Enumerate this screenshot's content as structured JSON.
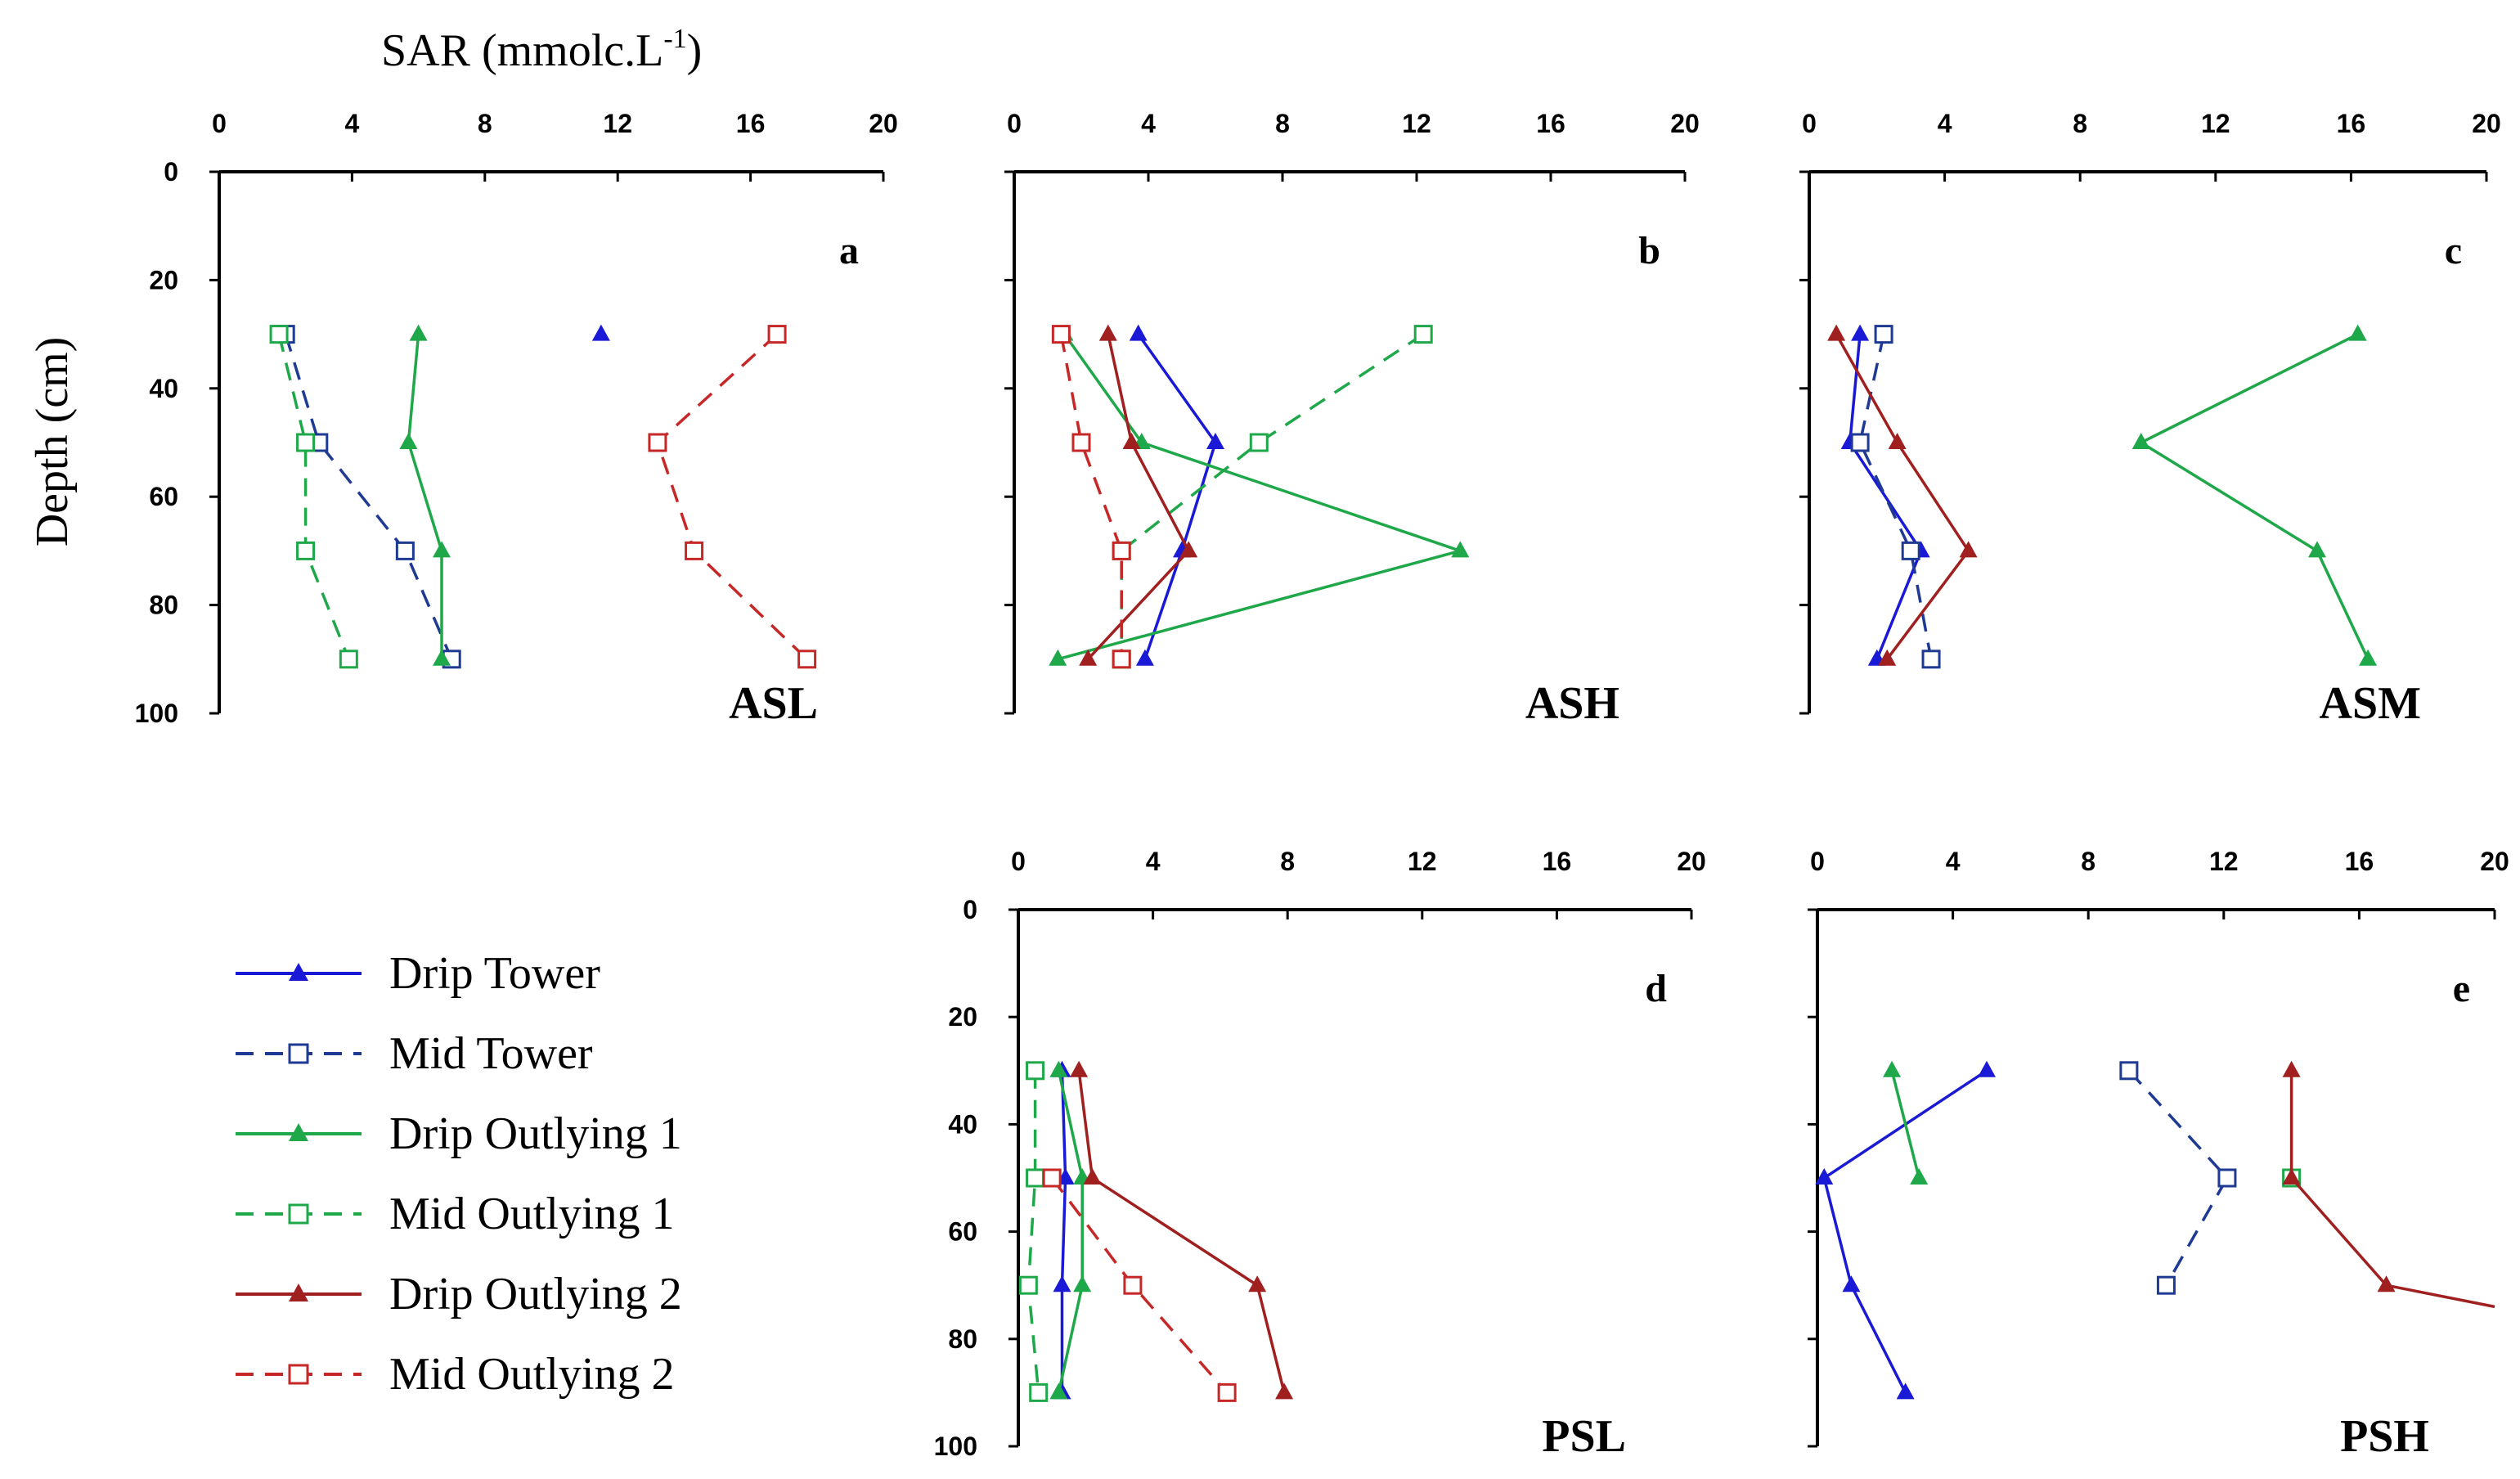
{
  "figure": {
    "xlabel_main": "SAR (mmolc.L",
    "xlabel_sup": "-1",
    "xlabel_close": ")",
    "ylabel": "Depth (cm)"
  },
  "legend": [
    {
      "label": "Drip Tower",
      "color": "#1a1ad6",
      "dashed": false,
      "marker": "triangle"
    },
    {
      "label": "Mid Tower",
      "color": "#1f3a93",
      "dashed": true,
      "marker": "square"
    },
    {
      "label": "Drip Outlying 1",
      "color": "#1fa84a",
      "dashed": false,
      "marker": "triangle"
    },
    {
      "label": "Mid Outlying 1",
      "color": "#1fa84a",
      "dashed": true,
      "marker": "square"
    },
    {
      "label": "Drip Outlying 2",
      "color": "#a01f1f",
      "dashed": false,
      "marker": "triangle"
    },
    {
      "label": "Mid Outlying 2",
      "color": "#c62828",
      "dashed": true,
      "marker": "square"
    }
  ],
  "chart_data": [
    {
      "type": "line",
      "letter": "a",
      "name": "ASL",
      "xlim": [
        0,
        20
      ],
      "ylim": [
        0,
        100
      ],
      "xticks": [
        0,
        4,
        8,
        12,
        16,
        20
      ],
      "yticks": [
        0,
        20,
        40,
        60,
        80,
        100
      ],
      "show_xtick_labels": true,
      "show_ytick_labels": true,
      "series": [
        {
          "name": "Drip Tower",
          "points": [
            [
              11.5,
              30
            ]
          ]
        },
        {
          "name": "Mid Tower",
          "points": [
            [
              2,
              30
            ],
            [
              3,
              50
            ],
            [
              5.6,
              70
            ],
            [
              7,
              90
            ]
          ]
        },
        {
          "name": "Drip Outlying 1",
          "points": [
            [
              6,
              30
            ],
            [
              5.7,
              50
            ],
            [
              6.7,
              70
            ],
            [
              6.7,
              90
            ]
          ]
        },
        {
          "name": "Mid Outlying 1",
          "points": [
            [
              1.8,
              30
            ],
            [
              2.6,
              50
            ],
            [
              2.6,
              70
            ],
            [
              3.9,
              90
            ]
          ]
        },
        {
          "name": "Mid Outlying 2",
          "points": [
            [
              16.8,
              30
            ],
            [
              13.2,
              50
            ],
            [
              14.3,
              70
            ],
            [
              17.7,
              90
            ]
          ]
        }
      ]
    },
    {
      "type": "line",
      "letter": "b",
      "name": "ASH",
      "xlim": [
        0,
        20
      ],
      "ylim": [
        0,
        100
      ],
      "xticks": [
        0,
        4,
        8,
        12,
        16,
        20
      ],
      "yticks": [
        0,
        20,
        40,
        60,
        80,
        100
      ],
      "show_xtick_labels": true,
      "show_ytick_labels": false,
      "series": [
        {
          "name": "Drip Tower",
          "points": [
            [
              3.7,
              30
            ],
            [
              6,
              50
            ],
            [
              5,
              70
            ],
            [
              3.9,
              90
            ]
          ]
        },
        {
          "name": "Drip Outlying 1",
          "points": [
            [
              1.5,
              30
            ],
            [
              3.8,
              50
            ],
            [
              13.3,
              70
            ],
            [
              1.3,
              90
            ]
          ]
        },
        {
          "name": "Mid Outlying 1",
          "points": [
            [
              12.2,
              30
            ],
            [
              7.3,
              50
            ],
            [
              3.2,
              70
            ],
            [
              3.2,
              90
            ]
          ]
        },
        {
          "name": "Drip Outlying 2",
          "points": [
            [
              2.8,
              30
            ],
            [
              3.5,
              50
            ],
            [
              5.2,
              70
            ],
            [
              2.2,
              90
            ]
          ]
        },
        {
          "name": "Mid Outlying 2",
          "points": [
            [
              1.4,
              30
            ],
            [
              2,
              50
            ],
            [
              3.2,
              70
            ],
            [
              3.2,
              90
            ]
          ]
        }
      ]
    },
    {
      "type": "line",
      "letter": "c",
      "name": "ASM",
      "xlim": [
        0,
        20
      ],
      "ylim": [
        0,
        100
      ],
      "xticks": [
        0,
        4,
        8,
        12,
        16,
        20
      ],
      "yticks": [
        0,
        20,
        40,
        60,
        80,
        100
      ],
      "show_xtick_labels": true,
      "show_ytick_labels": false,
      "series": [
        {
          "name": "Drip Tower",
          "points": [
            [
              1.5,
              30
            ],
            [
              1.2,
              50
            ],
            [
              3.3,
              70
            ],
            [
              2,
              90
            ]
          ]
        },
        {
          "name": "Mid Tower",
          "points": [
            [
              2.2,
              30
            ],
            [
              1.5,
              50
            ],
            [
              3,
              70
            ],
            [
              3.6,
              90
            ]
          ]
        },
        {
          "name": "Drip Outlying 1",
          "points": [
            [
              16.2,
              30
            ],
            [
              9.8,
              50
            ],
            [
              15,
              70
            ],
            [
              16.5,
              90
            ]
          ]
        },
        {
          "name": "Drip Outlying 2",
          "points": [
            [
              0.8,
              30
            ],
            [
              2.6,
              50
            ],
            [
              4.7,
              70
            ],
            [
              2.3,
              90
            ]
          ]
        }
      ]
    },
    {
      "type": "line",
      "letter": "d",
      "name": "PSL",
      "xlim": [
        0,
        20
      ],
      "ylim": [
        0,
        100
      ],
      "xticks": [
        0,
        4,
        8,
        12,
        16,
        20
      ],
      "yticks": [
        0,
        20,
        40,
        60,
        80,
        100
      ],
      "show_xtick_labels": true,
      "show_ytick_labels": true,
      "series": [
        {
          "name": "Drip Tower",
          "points": [
            [
              1.3,
              30
            ],
            [
              1.4,
              50
            ],
            [
              1.3,
              70
            ],
            [
              1.3,
              90
            ]
          ]
        },
        {
          "name": "Drip Outlying 1",
          "points": [
            [
              1.2,
              30
            ],
            [
              1.9,
              50
            ],
            [
              1.9,
              70
            ],
            [
              1.2,
              90
            ]
          ]
        },
        {
          "name": "Mid Outlying 1",
          "points": [
            [
              0.5,
              30
            ],
            [
              0.5,
              50
            ],
            [
              0.3,
              70
            ],
            [
              0.6,
              90
            ]
          ]
        },
        {
          "name": "Drip Outlying 2",
          "points": [
            [
              1.8,
              30
            ],
            [
              2.2,
              50
            ],
            [
              7.1,
              70
            ],
            [
              7.9,
              90
            ]
          ]
        },
        {
          "name": "Mid Outlying 2",
          "points": [
            [
              1,
              50
            ],
            [
              3.4,
              70
            ],
            [
              6.2,
              90
            ]
          ]
        }
      ]
    },
    {
      "type": "line",
      "letter": "e",
      "name": "PSH",
      "xlim": [
        0,
        20
      ],
      "ylim": [
        0,
        100
      ],
      "xticks": [
        0,
        4,
        8,
        12,
        16,
        20
      ],
      "yticks": [
        0,
        20,
        40,
        60,
        80,
        100
      ],
      "show_xtick_labels": true,
      "show_ytick_labels": false,
      "series": [
        {
          "name": "Drip Tower",
          "points": [
            [
              5,
              30
            ],
            [
              0.2,
              50
            ],
            [
              1,
              70
            ],
            [
              2.6,
              90
            ]
          ]
        },
        {
          "name": "Mid Tower",
          "points": [
            [
              9.2,
              30
            ],
            [
              12.1,
              50
            ],
            [
              10.3,
              70
            ]
          ]
        },
        {
          "name": "Drip Outlying 1",
          "points": [
            [
              2.2,
              30
            ],
            [
              3,
              50
            ]
          ]
        },
        {
          "name": "Mid Outlying 1",
          "points": [
            [
              14,
              50
            ]
          ]
        },
        {
          "name": "Drip Outlying 2",
          "points": [
            [
              14,
              30
            ],
            [
              14,
              50
            ],
            [
              16.8,
              70
            ],
            [
              20,
              74
            ]
          ]
        }
      ]
    }
  ]
}
